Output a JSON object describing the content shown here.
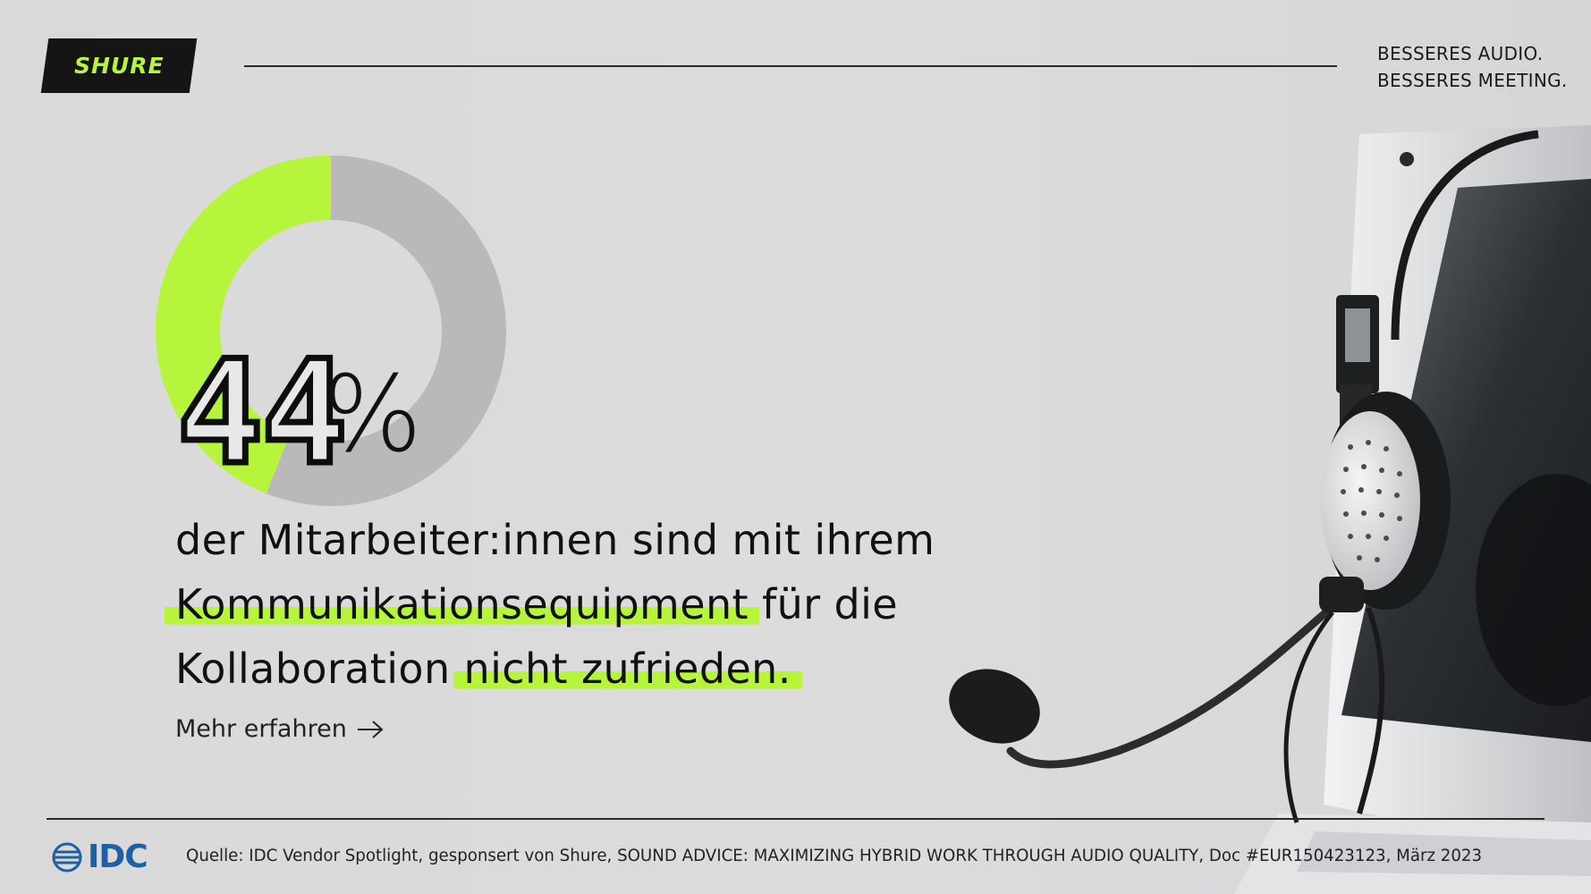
{
  "brand": {
    "logo_text": "SHURE",
    "accent_color": "#b7f43c"
  },
  "tagline": {
    "line1": "BESSERES AUDIO.",
    "line2": "BESSERES MEETING."
  },
  "stat": {
    "number": "44",
    "symbol": "%"
  },
  "headline": {
    "part1": "der Mitarbeiter:innen sind mit ihrem",
    "part2_highlight": "Kommunikationsequipment",
    "part2_rest": " für die",
    "part3": "Kollaboration ",
    "part3_highlight": "nicht zufrieden."
  },
  "cta": {
    "label": "Mehr erfahren",
    "icon": "arrow-right-icon"
  },
  "footer": {
    "logo_text": "IDC",
    "source": "Quelle: IDC Vendor Spotlight, gesponsert von Shure, SOUND ADVICE: MAXIMIZING HYBRID WORK THROUGH AUDIO QUALITY, Doc #EUR150423123, März 2023"
  },
  "chart_data": {
    "type": "pie",
    "title": "",
    "values": [
      44,
      56
    ],
    "colors": [
      "#b7f43c",
      "#b9b9ba"
    ],
    "hole": true
  }
}
